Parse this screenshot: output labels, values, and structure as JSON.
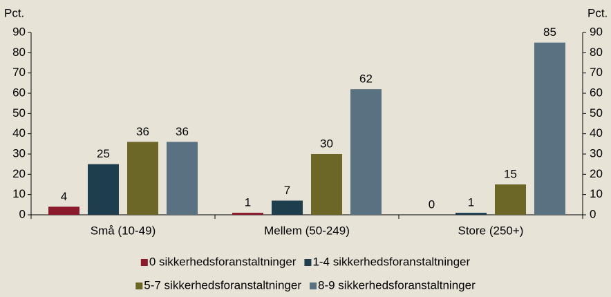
{
  "chart_data": {
    "type": "bar",
    "y_label": "Pct.",
    "y2_label": "Pct.",
    "categories": [
      "Små (10-49)",
      "Mellem (50-249)",
      "Store (250+)"
    ],
    "series": [
      {
        "name": "0 sikkerhedsforanstaltninger",
        "color": "#8a1a2c",
        "values": [
          4,
          1,
          0
        ]
      },
      {
        "name": "1-4 sikkerhedsforanstaltninger",
        "color": "#1e3e4d",
        "values": [
          25,
          7,
          1
        ]
      },
      {
        "name": "5-7 sikkerhedsforanstaltninger",
        "color": "#6c6627",
        "values": [
          36,
          30,
          15
        ]
      },
      {
        "name": "8-9 sikkerhedsforanstaltninger",
        "color": "#5a7182",
        "values": [
          36,
          62,
          85
        ]
      }
    ],
    "ylim": [
      0,
      90
    ],
    "yticks": [
      0,
      10,
      20,
      30,
      40,
      50,
      60,
      70,
      80,
      90
    ],
    "y2lim": [
      0,
      90
    ],
    "y2ticks": [
      0,
      10,
      20,
      30,
      40,
      50,
      60,
      70,
      80,
      90
    ],
    "grid": false
  }
}
